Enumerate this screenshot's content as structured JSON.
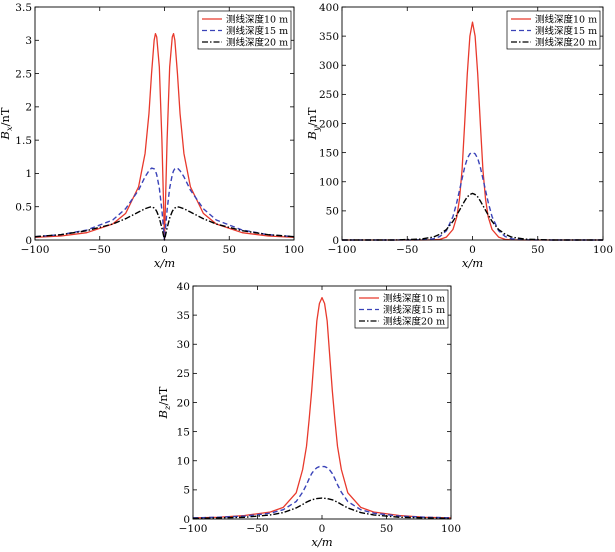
{
  "colors": {
    "depth10": "#e8392c",
    "depth15": "#3a43b8",
    "depth20": "#000000",
    "axes": "#000000",
    "background": "#ffffff"
  },
  "chart_data": [
    {
      "id": "bx",
      "type": "line",
      "title": "",
      "xlabel": "x/m",
      "ylabel": "Bx/nT",
      "ylabel_main": "B",
      "ylabel_sub": "x",
      "ylabel_unit": "/nT",
      "xlim": [
        -100,
        100
      ],
      "ylim": [
        0,
        3.5
      ],
      "xticks": [
        -100,
        -50,
        0,
        50,
        100
      ],
      "xtick_labels": [
        "−100",
        "−50",
        "0",
        "50",
        "100"
      ],
      "yticks": [
        0,
        0.5,
        1,
        1.5,
        2,
        2.5,
        3,
        3.5
      ],
      "ytick_labels": [
        "0",
        "0.5",
        "1",
        "1.5",
        "2",
        "2.5",
        "3",
        "3.5"
      ],
      "legend": "top-right",
      "grid": false,
      "x": [
        -100,
        -80,
        -60,
        -40,
        -30,
        -20,
        -15,
        -12,
        -10,
        -8,
        -7,
        -6,
        -4,
        -2,
        0,
        2,
        4,
        6,
        7,
        8,
        10,
        12,
        15,
        20,
        30,
        40,
        60,
        80,
        100
      ],
      "series": [
        {
          "name": "测线深度10 m",
          "style": "solid",
          "values": [
            0.04,
            0.06,
            0.11,
            0.24,
            0.4,
            0.8,
            1.3,
            1.9,
            2.5,
            3.0,
            3.1,
            3.05,
            2.6,
            1.5,
            0.0,
            1.5,
            2.6,
            3.05,
            3.1,
            3.0,
            2.5,
            1.9,
            1.3,
            0.8,
            0.4,
            0.24,
            0.11,
            0.06,
            0.04
          ]
        },
        {
          "name": "测线深度15 m",
          "style": "dashed",
          "values": [
            0.05,
            0.08,
            0.15,
            0.3,
            0.47,
            0.75,
            0.95,
            1.04,
            1.08,
            1.07,
            1.04,
            0.98,
            0.78,
            0.45,
            0.0,
            0.45,
            0.78,
            0.98,
            1.04,
            1.07,
            1.08,
            1.04,
            0.95,
            0.75,
            0.47,
            0.3,
            0.15,
            0.08,
            0.05
          ]
        },
        {
          "name": "测线深度20 m",
          "style": "dashdot",
          "values": [
            0.05,
            0.08,
            0.14,
            0.24,
            0.32,
            0.42,
            0.47,
            0.49,
            0.5,
            0.48,
            0.46,
            0.43,
            0.33,
            0.18,
            0.0,
            0.18,
            0.33,
            0.43,
            0.46,
            0.48,
            0.5,
            0.49,
            0.47,
            0.42,
            0.32,
            0.24,
            0.14,
            0.08,
            0.05
          ]
        }
      ]
    },
    {
      "id": "by",
      "type": "line",
      "title": "",
      "xlabel": "x/m",
      "ylabel": "By/nT",
      "ylabel_main": "B",
      "ylabel_sub": "y",
      "ylabel_unit": "/nT",
      "xlim": [
        -100,
        100
      ],
      "ylim": [
        0,
        400
      ],
      "xticks": [
        -100,
        -50,
        0,
        50,
        100
      ],
      "xtick_labels": [
        "−100",
        "−50",
        "0",
        "50",
        "100"
      ],
      "yticks": [
        0,
        50,
        100,
        150,
        200,
        250,
        300,
        350,
        400
      ],
      "ytick_labels": [
        "0",
        "50",
        "100",
        "150",
        "200",
        "250",
        "300",
        "350",
        "400"
      ],
      "legend": "top-right",
      "grid": false,
      "x": [
        -100,
        -80,
        -60,
        -40,
        -30,
        -25,
        -20,
        -15,
        -12,
        -10,
        -8,
        -6,
        -4,
        -2,
        0,
        2,
        4,
        6,
        8,
        10,
        12,
        15,
        20,
        25,
        30,
        40,
        60,
        80,
        100
      ],
      "series": [
        {
          "name": "测线深度10 m",
          "style": "solid",
          "values": [
            0,
            0,
            0,
            0,
            0.3,
            1,
            5,
            18,
            40,
            70,
            120,
            200,
            285,
            350,
            374,
            350,
            285,
            200,
            120,
            70,
            40,
            18,
            5,
            1,
            0.3,
            0,
            0,
            0,
            0
          ]
        },
        {
          "name": "测线深度15 m",
          "style": "dashed",
          "values": [
            0,
            0,
            0,
            0.3,
            2,
            6,
            16,
            40,
            65,
            85,
            105,
            125,
            140,
            148,
            150,
            148,
            140,
            125,
            105,
            85,
            65,
            40,
            16,
            6,
            2,
            0.3,
            0,
            0,
            0
          ]
        },
        {
          "name": "测线深度20 m",
          "style": "dashdot",
          "values": [
            0,
            0,
            0,
            1.5,
            5,
            10,
            18,
            32,
            43,
            51,
            59,
            67,
            74,
            78,
            80,
            78,
            74,
            67,
            59,
            51,
            43,
            32,
            18,
            10,
            5,
            1.5,
            0,
            0,
            0
          ]
        }
      ]
    },
    {
      "id": "bz",
      "type": "line",
      "title": "",
      "xlabel": "x/m",
      "ylabel": "Bz/nT",
      "ylabel_main": "B",
      "ylabel_sub": "z",
      "ylabel_unit": "/nT",
      "xlim": [
        -100,
        100
      ],
      "ylim": [
        0,
        40
      ],
      "xticks": [
        -100,
        -50,
        0,
        50,
        100
      ],
      "xtick_labels": [
        "−100",
        "−50",
        "0",
        "50",
        "100"
      ],
      "yticks": [
        0,
        5,
        10,
        15,
        20,
        25,
        30,
        35,
        40
      ],
      "ytick_labels": [
        "0",
        "5",
        "10",
        "15",
        "20",
        "25",
        "30",
        "35",
        "40"
      ],
      "legend": "top-right",
      "grid": false,
      "x": [
        -100,
        -80,
        -60,
        -40,
        -30,
        -20,
        -15,
        -12,
        -10,
        -8,
        -6,
        -4,
        -2,
        0,
        2,
        4,
        6,
        8,
        10,
        12,
        15,
        20,
        30,
        40,
        60,
        80,
        100
      ],
      "series": [
        {
          "name": "测线深度10 m",
          "style": "solid",
          "values": [
            0.2,
            0.3,
            0.6,
            1.2,
            2.0,
            4.5,
            8.5,
            12.5,
            17,
            22,
            28,
            34,
            37,
            38,
            37,
            34,
            28,
            22,
            17,
            12.5,
            8.5,
            4.5,
            2.0,
            1.2,
            0.6,
            0.3,
            0.2
          ]
        },
        {
          "name": "测线深度15 m",
          "style": "dashed",
          "values": [
            0.2,
            0.3,
            0.5,
            1.0,
            1.6,
            3.0,
            4.6,
            5.9,
            6.9,
            7.8,
            8.4,
            8.8,
            9.0,
            9.0,
            9.0,
            8.8,
            8.4,
            7.8,
            6.9,
            5.9,
            4.6,
            3.0,
            1.6,
            1.0,
            0.5,
            0.3,
            0.2
          ]
        },
        {
          "name": "测线深度20 m",
          "style": "dashdot",
          "values": [
            0.1,
            0.2,
            0.3,
            0.7,
            1.1,
            1.9,
            2.5,
            2.9,
            3.1,
            3.3,
            3.4,
            3.5,
            3.55,
            3.6,
            3.55,
            3.5,
            3.4,
            3.3,
            3.1,
            2.9,
            2.5,
            1.9,
            1.1,
            0.7,
            0.3,
            0.2,
            0.1
          ]
        }
      ]
    }
  ]
}
